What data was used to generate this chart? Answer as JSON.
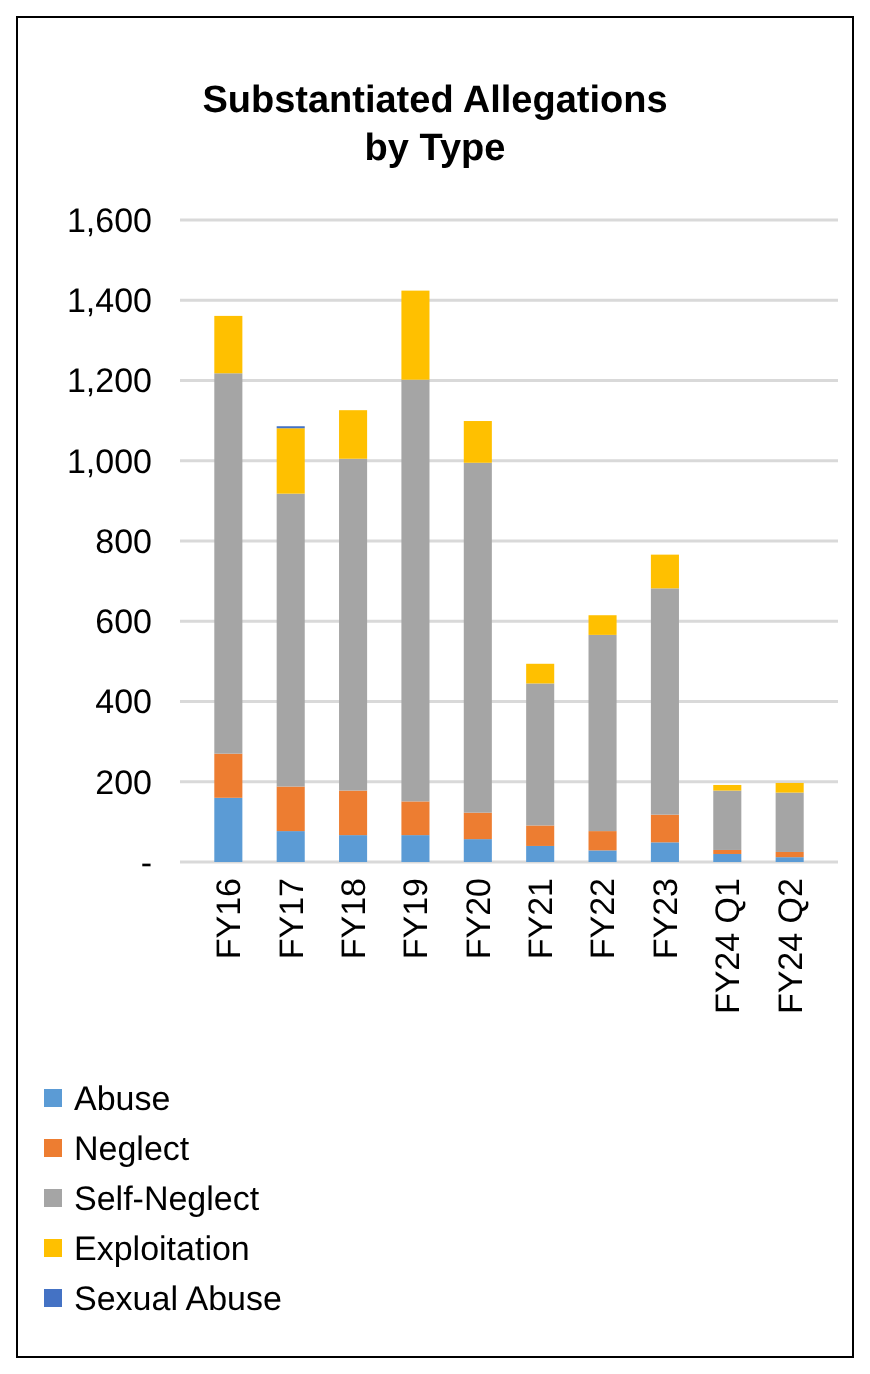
{
  "chart_data": {
    "type": "bar",
    "stacked": true,
    "title": "Substantiated Allegations by Type",
    "categories": [
      "FY16",
      "FY17",
      "FY18",
      "FY19",
      "FY20",
      "FY21",
      "FY22",
      "FY23",
      "FY24 Q1",
      "FY24 Q2"
    ],
    "series": [
      {
        "name": "Abuse",
        "color": "#5b9bd5",
        "values": [
          160,
          77,
          67,
          67,
          57,
          40,
          29,
          49,
          20,
          12
        ]
      },
      {
        "name": "Neglect",
        "color": "#ed7d31",
        "values": [
          110,
          111,
          111,
          84,
          66,
          51,
          48,
          69,
          10,
          13
        ]
      },
      {
        "name": "Self-Neglect",
        "color": "#a5a5a5",
        "values": [
          948,
          730,
          827,
          1051,
          872,
          354,
          489,
          564,
          148,
          148
        ]
      },
      {
        "name": "Exploitation",
        "color": "#ffc000",
        "values": [
          143,
          163,
          121,
          222,
          104,
          49,
          49,
          84,
          14,
          24
        ]
      },
      {
        "name": "Sexual Abuse",
        "color": "#4472c4",
        "values": [
          0,
          5,
          0,
          0,
          0,
          0,
          0,
          0,
          0,
          0
        ]
      }
    ],
    "ylim": [
      0,
      1600
    ],
    "yticks": [
      {
        "value": 0,
        "label": "-"
      },
      {
        "value": 200,
        "label": "200"
      },
      {
        "value": 400,
        "label": "400"
      },
      {
        "value": 600,
        "label": "600"
      },
      {
        "value": 800,
        "label": "800"
      },
      {
        "value": 1000,
        "label": "1,000"
      },
      {
        "value": 1200,
        "label": "1,200"
      },
      {
        "value": 1400,
        "label": "1,400"
      },
      {
        "value": 1600,
        "label": "1,600"
      }
    ],
    "grid": "y",
    "legend": "bottom",
    "marker": "square"
  }
}
